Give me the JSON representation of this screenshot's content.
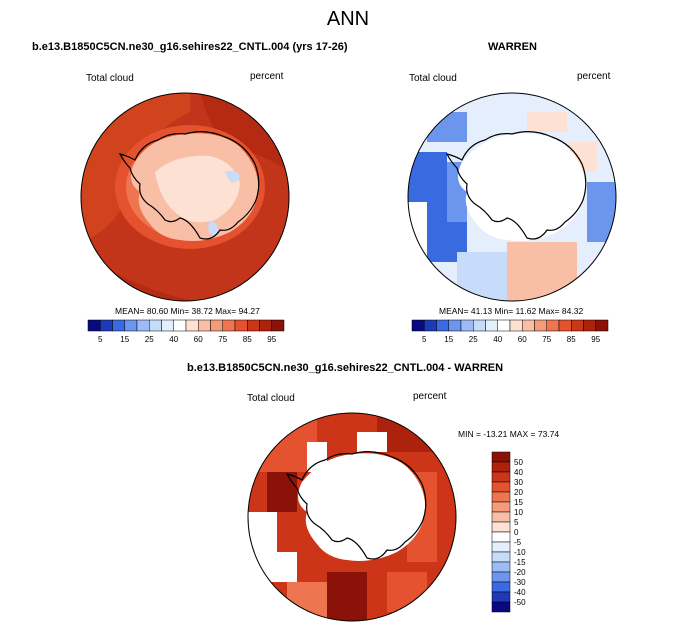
{
  "figure": {
    "title": "ANN",
    "colors": {
      "ocean_high": "#b42a12",
      "ocean_mid": "#d64a20",
      "land_low": "#f5d0bd",
      "coast": "#000000"
    }
  },
  "panel1": {
    "subtitle": "b.e13.B1850C5CN.ne30_g16.sehires22_CNTL.004 (yrs 17-26)",
    "left_label": "Total cloud",
    "right_label": "percent",
    "stats": "MEAN=  80.60  Min=  38.72  Max=  94.27"
  },
  "panel2": {
    "subtitle": "WARREN",
    "left_label": "Total cloud",
    "right_label": "percent",
    "stats": "MEAN=  41.13  Min=  11.62  Max=  84.32"
  },
  "panel3": {
    "subtitle": "b.e13.B1850C5CN.ne30_g16.sehires22_CNTL.004 - WARREN",
    "left_label": "Total cloud",
    "right_label": "percent",
    "stats": "MIN = -13.21  MAX =  73.74"
  },
  "colorbar_abs": {
    "ticks": [
      "5",
      "15",
      "25",
      "40",
      "60",
      "75",
      "85",
      "95"
    ],
    "colors": [
      "#0a0a80",
      "#1f3ab8",
      "#3a6ae0",
      "#6c96ee",
      "#9dbcf4",
      "#c6dcfa",
      "#e4eefc",
      "#ffffff",
      "#fde1d2",
      "#f9bfa6",
      "#f59a7a",
      "#ef7550",
      "#e4522f",
      "#cc3518",
      "#ad220d",
      "#8a1208"
    ]
  },
  "colorbar_diff": {
    "ticks": [
      "50",
      "40",
      "30",
      "20",
      "15",
      "10",
      "5",
      "0",
      "-5",
      "-10",
      "-15",
      "-20",
      "-30",
      "-40",
      "-50"
    ],
    "colors": [
      "#8a1208",
      "#ad220d",
      "#cc3518",
      "#e4522f",
      "#ef7550",
      "#f59a7a",
      "#f9bfa6",
      "#fde1d2",
      "#ffffff",
      "#e4eefc",
      "#c6dcfa",
      "#9dbcf4",
      "#6c96ee",
      "#3a6ae0",
      "#1f3ab8",
      "#0a0a80"
    ]
  }
}
